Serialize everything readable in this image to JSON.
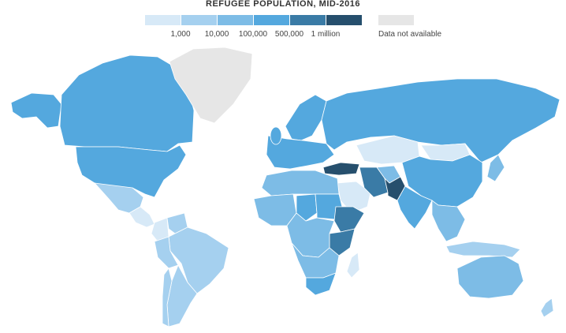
{
  "title": "REFUGEE POPULATION, MID-2016",
  "legend": {
    "colors": [
      "#d7e9f7",
      "#a5d0ef",
      "#7dbce6",
      "#54a8de",
      "#3a7ba6",
      "#264f6d"
    ],
    "ticks": [
      "1,000",
      "10,000",
      "100,000",
      "500,000",
      "1 million"
    ],
    "na_color": "#e6e6e6",
    "na_label": "Data not available"
  },
  "regions": [
    {
      "name": "Canada",
      "level": 3
    },
    {
      "name": "United States",
      "level": 3
    },
    {
      "name": "Alaska",
      "level": 3
    },
    {
      "name": "Greenland",
      "level": -1
    },
    {
      "name": "Mexico",
      "level": 1
    },
    {
      "name": "Central America",
      "level": 0
    },
    {
      "name": "Venezuela",
      "level": 1
    },
    {
      "name": "Colombia",
      "level": 0
    },
    {
      "name": "Brazil",
      "level": 1
    },
    {
      "name": "Peru",
      "level": 1
    },
    {
      "name": "Argentina",
      "level": 1
    },
    {
      "name": "Chile",
      "level": 1
    },
    {
      "name": "Western Europe",
      "level": 3
    },
    {
      "name": "Scandinavia",
      "level": 3
    },
    {
      "name": "Russia",
      "level": 3
    },
    {
      "name": "Kazakhstan",
      "level": 0
    },
    {
      "name": "Mongolia",
      "level": 0
    },
    {
      "name": "China",
      "level": 3
    },
    {
      "name": "Turkey",
      "level": 5
    },
    {
      "name": "Iran",
      "level": 4
    },
    {
      "name": "Pakistan",
      "level": 5
    },
    {
      "name": "Afghanistan",
      "level": 2
    },
    {
      "name": "Saudi Arabia",
      "level": 0
    },
    {
      "name": "India",
      "level": 3
    },
    {
      "name": "Southeast Asia",
      "level": 2
    },
    {
      "name": "Japan",
      "level": 2
    },
    {
      "name": "North Africa",
      "level": 2
    },
    {
      "name": "West Africa",
      "level": 2
    },
    {
      "name": "Chad",
      "level": 3
    },
    {
      "name": "Sudan",
      "level": 3
    },
    {
      "name": "Ethiopia",
      "level": 4
    },
    {
      "name": "Kenya",
      "level": 4
    },
    {
      "name": "Central Africa",
      "level": 2
    },
    {
      "name": "Southern Africa",
      "level": 2
    },
    {
      "name": "South Africa",
      "level": 3
    },
    {
      "name": "Madagascar",
      "level": 0
    },
    {
      "name": "Australia",
      "level": 2
    },
    {
      "name": "New Zealand",
      "level": 1
    },
    {
      "name": "Indonesia",
      "level": 1
    }
  ]
}
